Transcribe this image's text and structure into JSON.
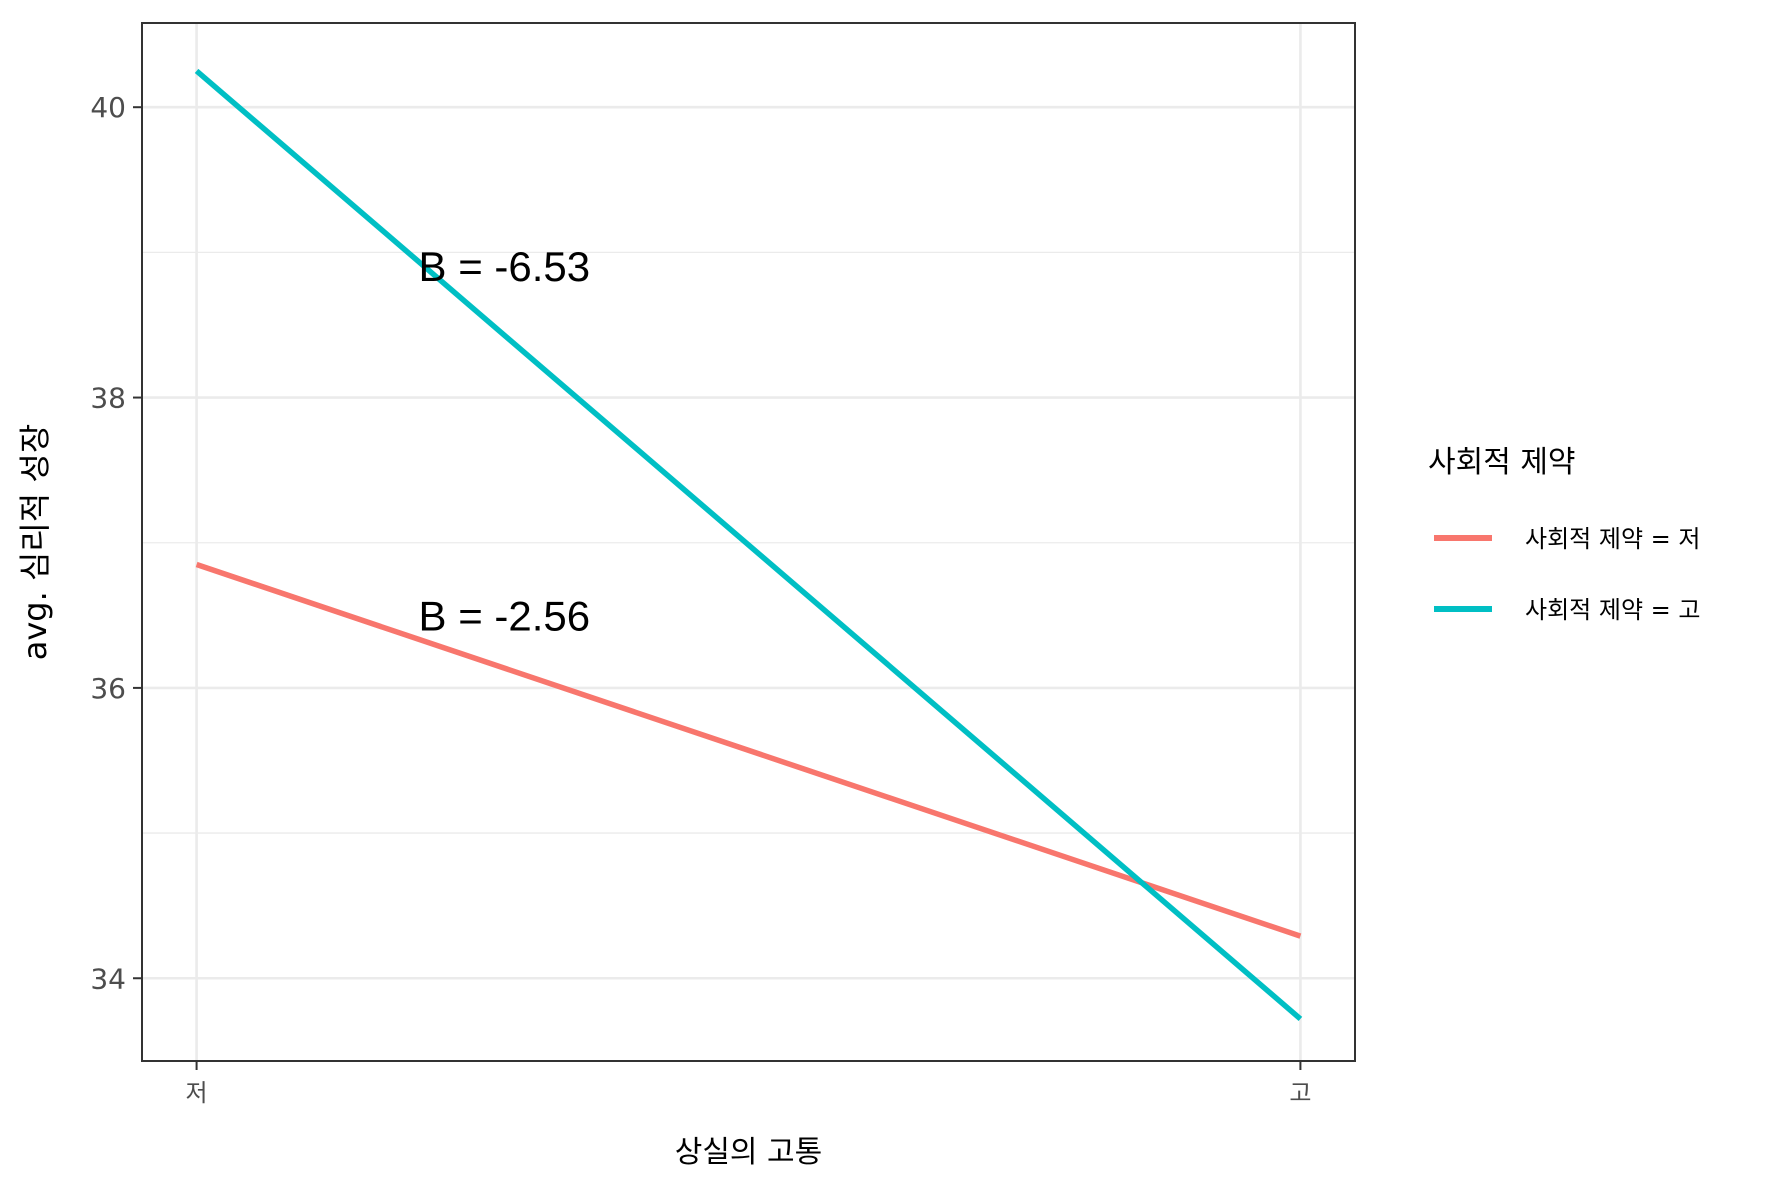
{
  "chart_data": {
    "type": "line",
    "categories": [
      "저",
      "고"
    ],
    "xlabel": "상실의 고통",
    "ylabel": "avg. 심리적 성장",
    "ylim": [
      33.43,
      40.58
    ],
    "yticks": [
      34,
      36,
      38,
      40
    ],
    "grid": true,
    "legend": {
      "title": "사회적 제약",
      "placement": "right"
    },
    "series": [
      {
        "name": "사회적 제약 = 저",
        "color": "#F8766D",
        "values": [
          36.85,
          34.29
        ]
      },
      {
        "name": "사회적 제약 = 고",
        "color": "#00BFC4",
        "values": [
          40.25,
          33.72
        ]
      }
    ],
    "annotations": [
      {
        "text": "B = -6.53",
        "series": 1
      },
      {
        "text": "B = -2.56",
        "series": 0
      }
    ]
  }
}
